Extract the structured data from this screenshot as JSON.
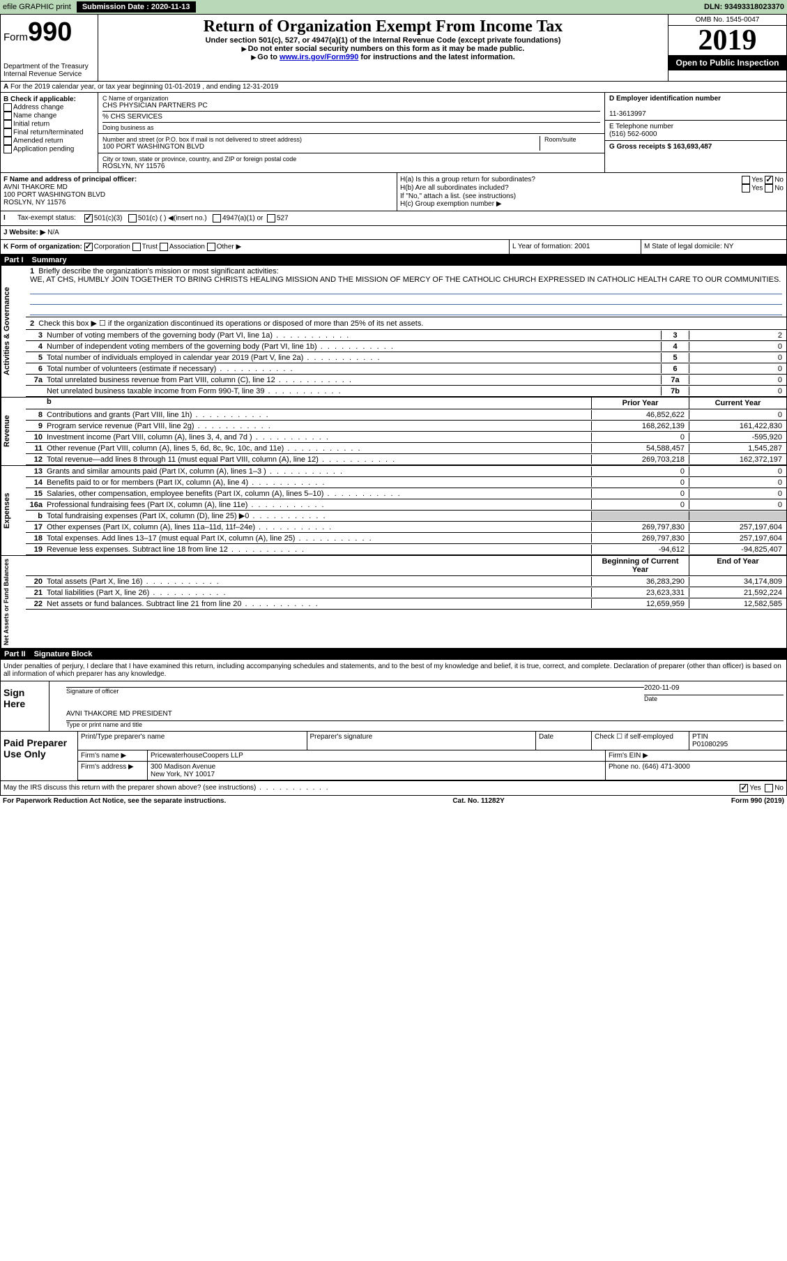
{
  "topbar": {
    "efile_label": "efile GRAPHIC print",
    "submission_label": "Submission Date : 2020-11-13",
    "dln": "DLN: 93493318023370"
  },
  "header": {
    "form_label": "Form",
    "form_number": "990",
    "dept": "Department of the Treasury",
    "irs": "Internal Revenue Service",
    "title": "Return of Organization Exempt From Income Tax",
    "subtitle": "Under section 501(c), 527, or 4947(a)(1) of the Internal Revenue Code (except private foundations)",
    "note1": "Do not enter social security numbers on this form as it may be made public.",
    "note2_prefix": "Go to ",
    "note2_link": "www.irs.gov/Form990",
    "note2_suffix": " for instructions and the latest information.",
    "omb": "OMB No. 1545-0047",
    "year": "2019",
    "open_public": "Open to Public Inspection"
  },
  "section_a": "For the 2019 calendar year, or tax year beginning 01-01-2019    , and ending 12-31-2019",
  "box_b": {
    "label": "B Check if applicable:",
    "items": [
      "Address change",
      "Name change",
      "Initial return",
      "Final return/terminated",
      "Amended return",
      "Application pending"
    ]
  },
  "box_c": {
    "name_label": "C Name of organization",
    "name": "CHS PHYSICIAN PARTNERS PC",
    "care_of": "% CHS SERVICES",
    "dba_label": "Doing business as",
    "addr_label": "Number and street (or P.O. box if mail is not delivered to street address)",
    "room_label": "Room/suite",
    "address": "100 PORT WASHINGTON BLVD",
    "city_label": "City or town, state or province, country, and ZIP or foreign postal code",
    "city": "ROSLYN, NY  11576"
  },
  "box_d": {
    "label": "D Employer identification number",
    "value": "11-3613997"
  },
  "box_e": {
    "label": "E Telephone number",
    "value": "(516) 562-6000"
  },
  "box_g": {
    "label": "G Gross receipts $ 163,693,487"
  },
  "box_f": {
    "label": "F  Name and address of principal officer:",
    "name": "AVNI THAKORE MD",
    "addr1": "100 PORT WASHINGTON BLVD",
    "addr2": "ROSLYN, NY  11576"
  },
  "box_h": {
    "a": "H(a)  Is this a group return for subordinates?",
    "b": "H(b)  Are all subordinates included?",
    "note": "If \"No,\" attach a list. (see instructions)",
    "c": "H(c)  Group exemption number ▶"
  },
  "tax_status": {
    "i_label": "I",
    "label": "Tax-exempt status:",
    "opt1": "501(c)(3)",
    "opt2": "501(c) (   ) ◀(insert no.)",
    "opt3": "4947(a)(1) or",
    "opt4": "527"
  },
  "website": {
    "j_label": "J",
    "label": "Website: ▶",
    "value": "N/A"
  },
  "box_k": {
    "label": "K Form of organization:",
    "corp": "Corporation",
    "trust": "Trust",
    "assoc": "Association",
    "other": "Other ▶"
  },
  "box_l": {
    "label": "L Year of formation: 2001"
  },
  "box_m": {
    "label": "M State of legal domicile: NY"
  },
  "part1": {
    "header_num": "Part I",
    "header_label": "Summary",
    "mission_label": "Briefly describe the organization's mission or most significant activities:",
    "mission_text": "WE, AT CHS, HUMBLY JOIN TOGETHER TO BRING CHRISTS HEALING MISSION AND THE MISSION OF MERCY OF THE CATHOLIC CHURCH EXPRESSED IN CATHOLIC HEALTH CARE TO OUR COMMUNITIES.",
    "line2": "Check this box ▶ ☐  if the organization discontinued its operations or disposed of more than 25% of its net assets.",
    "governance_label": "Activities & Governance",
    "revenue_label": "Revenue",
    "expenses_label": "Expenses",
    "netassets_label": "Net Assets or Fund Balances",
    "lines_gov": [
      {
        "n": "3",
        "t": "Number of voting members of the governing body (Part VI, line 1a)",
        "b": "3",
        "v": "2"
      },
      {
        "n": "4",
        "t": "Number of independent voting members of the governing body (Part VI, line 1b)",
        "b": "4",
        "v": "0"
      },
      {
        "n": "5",
        "t": "Total number of individuals employed in calendar year 2019 (Part V, line 2a)",
        "b": "5",
        "v": "0"
      },
      {
        "n": "6",
        "t": "Total number of volunteers (estimate if necessary)",
        "b": "6",
        "v": "0"
      },
      {
        "n": "7a",
        "t": "Total unrelated business revenue from Part VIII, column (C), line 12",
        "b": "7a",
        "v": "0"
      },
      {
        "n": "",
        "t": "Net unrelated business taxable income from Form 990-T, line 39",
        "b": "7b",
        "v": "0"
      }
    ],
    "prior_year": "Prior Year",
    "current_year": "Current Year",
    "lines_rev": [
      {
        "n": "8",
        "t": "Contributions and grants (Part VIII, line 1h)",
        "p": "46,852,622",
        "c": "0"
      },
      {
        "n": "9",
        "t": "Program service revenue (Part VIII, line 2g)",
        "p": "168,262,139",
        "c": "161,422,830"
      },
      {
        "n": "10",
        "t": "Investment income (Part VIII, column (A), lines 3, 4, and 7d )",
        "p": "0",
        "c": "-595,920"
      },
      {
        "n": "11",
        "t": "Other revenue (Part VIII, column (A), lines 5, 6d, 8c, 9c, 10c, and 11e)",
        "p": "54,588,457",
        "c": "1,545,287"
      },
      {
        "n": "12",
        "t": "Total revenue—add lines 8 through 11 (must equal Part VIII, column (A), line 12)",
        "p": "269,703,218",
        "c": "162,372,197"
      }
    ],
    "lines_exp": [
      {
        "n": "13",
        "t": "Grants and similar amounts paid (Part IX, column (A), lines 1–3 )",
        "p": "0",
        "c": "0"
      },
      {
        "n": "14",
        "t": "Benefits paid to or for members (Part IX, column (A), line 4)",
        "p": "0",
        "c": "0"
      },
      {
        "n": "15",
        "t": "Salaries, other compensation, employee benefits (Part IX, column (A), lines 5–10)",
        "p": "0",
        "c": "0"
      },
      {
        "n": "16a",
        "t": "Professional fundraising fees (Part IX, column (A), line 11e)",
        "p": "0",
        "c": "0"
      },
      {
        "n": "b",
        "t": "Total fundraising expenses (Part IX, column (D), line 25) ▶0",
        "p": "",
        "c": "",
        "grey": true
      },
      {
        "n": "17",
        "t": "Other expenses (Part IX, column (A), lines 11a–11d, 11f–24e)",
        "p": "269,797,830",
        "c": "257,197,604"
      },
      {
        "n": "18",
        "t": "Total expenses. Add lines 13–17 (must equal Part IX, column (A), line 25)",
        "p": "269,797,830",
        "c": "257,197,604"
      },
      {
        "n": "19",
        "t": "Revenue less expenses. Subtract line 18 from line 12",
        "p": "-94,612",
        "c": "-94,825,407"
      }
    ],
    "boy": "Beginning of Current Year",
    "eoy": "End of Year",
    "lines_net": [
      {
        "n": "20",
        "t": "Total assets (Part X, line 16)",
        "p": "36,283,290",
        "c": "34,174,809"
      },
      {
        "n": "21",
        "t": "Total liabilities (Part X, line 26)",
        "p": "23,623,331",
        "c": "21,592,224"
      },
      {
        "n": "22",
        "t": "Net assets or fund balances. Subtract line 21 from line 20",
        "p": "12,659,959",
        "c": "12,582,585"
      }
    ]
  },
  "part2": {
    "header_num": "Part II",
    "header_label": "Signature Block",
    "declaration": "Under penalties of perjury, I declare that I have examined this return, including accompanying schedules and statements, and to the best of my knowledge and belief, it is true, correct, and complete. Declaration of preparer (other than officer) is based on all information of which preparer has any knowledge.",
    "sign_here": "Sign Here",
    "sig_officer": "Signature of officer",
    "sig_date": "Date",
    "sig_date_val": "2020-11-09",
    "officer_name": "AVNI THAKORE MD  PRESIDENT",
    "officer_sub": "Type or print name and title",
    "paid_prep": "Paid Preparer Use Only",
    "print_name": "Print/Type preparer's name",
    "prep_sig": "Preparer's signature",
    "date": "Date",
    "check_self": "Check ☐ if self-employed",
    "ptin_label": "PTIN",
    "ptin": "P01080295",
    "firm_name_label": "Firm's name    ▶",
    "firm_name": "PricewaterhouseCoopers LLP",
    "firm_ein": "Firm's EIN ▶",
    "firm_addr_label": "Firm's address ▶",
    "firm_addr1": "300 Madison Avenue",
    "firm_addr2": "New York, NY  10017",
    "firm_phone": "Phone no. (646) 471-3000",
    "discuss": "May the IRS discuss this return with the preparer shown above? (see instructions)",
    "yes": "Yes",
    "no": "No"
  },
  "footer": {
    "left": "For Paperwork Reduction Act Notice, see the separate instructions.",
    "mid": "Cat. No. 11282Y",
    "right": "Form 990 (2019)"
  }
}
